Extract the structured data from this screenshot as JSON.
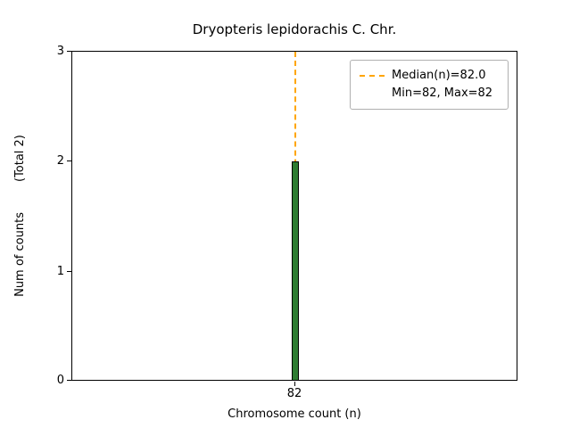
{
  "title": "Dryopteris lepidorachis C. Chr.",
  "chart_data": {
    "type": "bar",
    "categories": [
      "82"
    ],
    "values": [
      2
    ],
    "title": "Dryopteris lepidorachis C. Chr.",
    "xlabel": "Chromosome count (n)",
    "ylabel": "Num of counts",
    "ylabel_note": "(Total 2)",
    "ylim": [
      0,
      3
    ],
    "yticks": [
      "3",
      "2",
      "1",
      "0"
    ],
    "xticks": [
      "82"
    ],
    "total": 2,
    "median": 82.0,
    "min": 82,
    "max": 82,
    "legend_position": "upper right",
    "grid": false,
    "legend": {
      "median_label": "Median(n)=82.0",
      "minmax_label": "Min=82, Max=82"
    },
    "colors": {
      "bar_fill": "#2e7d32",
      "bar_edge": "#000000",
      "median_line": "#ffa500",
      "legend_border": "#b0b0b0"
    }
  }
}
